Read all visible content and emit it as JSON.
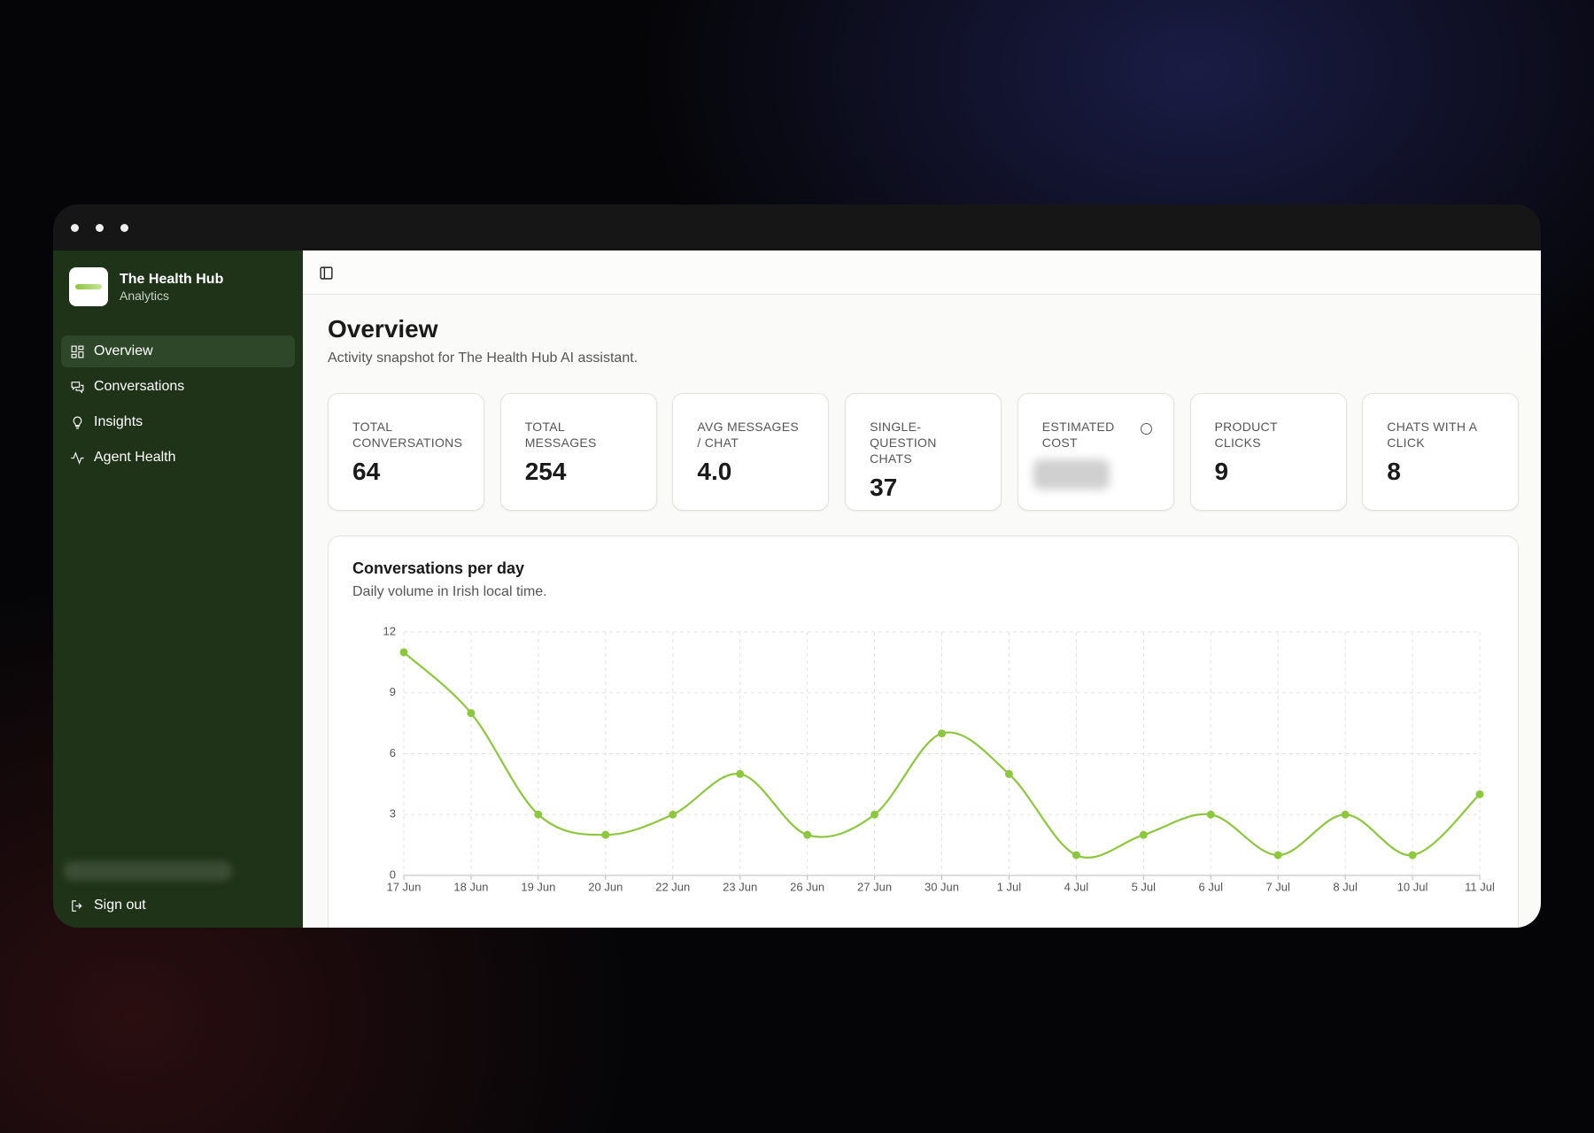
{
  "sidebar": {
    "brand": {
      "name": "The Health Hub",
      "subtitle": "Analytics"
    },
    "nav": [
      "Overview",
      "Conversations",
      "Insights",
      "Agent Health"
    ],
    "sign_out": "Sign out"
  },
  "page": {
    "title": "Overview",
    "subtitle": "Activity snapshot for The Health Hub AI assistant."
  },
  "stats": [
    {
      "label": "TOTAL CONVERSATIONS",
      "value": "64"
    },
    {
      "label": "TOTAL MESSAGES",
      "value": "254"
    },
    {
      "label": "AVG MESSAGES / CHAT",
      "value": "4.0"
    },
    {
      "label": "SINGLE-QUESTION CHATS",
      "value": "37"
    },
    {
      "label": "ESTIMATED COST"
    },
    {
      "label": "PRODUCT CLICKS",
      "value": "9"
    },
    {
      "label": "CHATS WITH A CLICK",
      "value": "8"
    }
  ],
  "chart_data": {
    "type": "line",
    "title": "Conversations per day",
    "subtitle": "Daily volume in Irish local time.",
    "categories": [
      "17 Jun",
      "18 Jun",
      "19 Jun",
      "20 Jun",
      "22 Jun",
      "23 Jun",
      "26 Jun",
      "27 Jun",
      "30 Jun",
      "1 Jul",
      "4 Jul",
      "5 Jul",
      "6 Jul",
      "7 Jul",
      "8 Jul",
      "10 Jul",
      "11 Jul"
    ],
    "values": [
      11,
      8,
      3,
      2,
      3,
      5,
      2,
      3,
      7,
      5,
      1,
      2,
      3,
      1,
      3,
      1,
      4
    ],
    "color": "#8dc63f",
    "ylim": [
      0,
      12
    ],
    "yticks": [
      0,
      3,
      6,
      9,
      12
    ],
    "grid": true
  }
}
